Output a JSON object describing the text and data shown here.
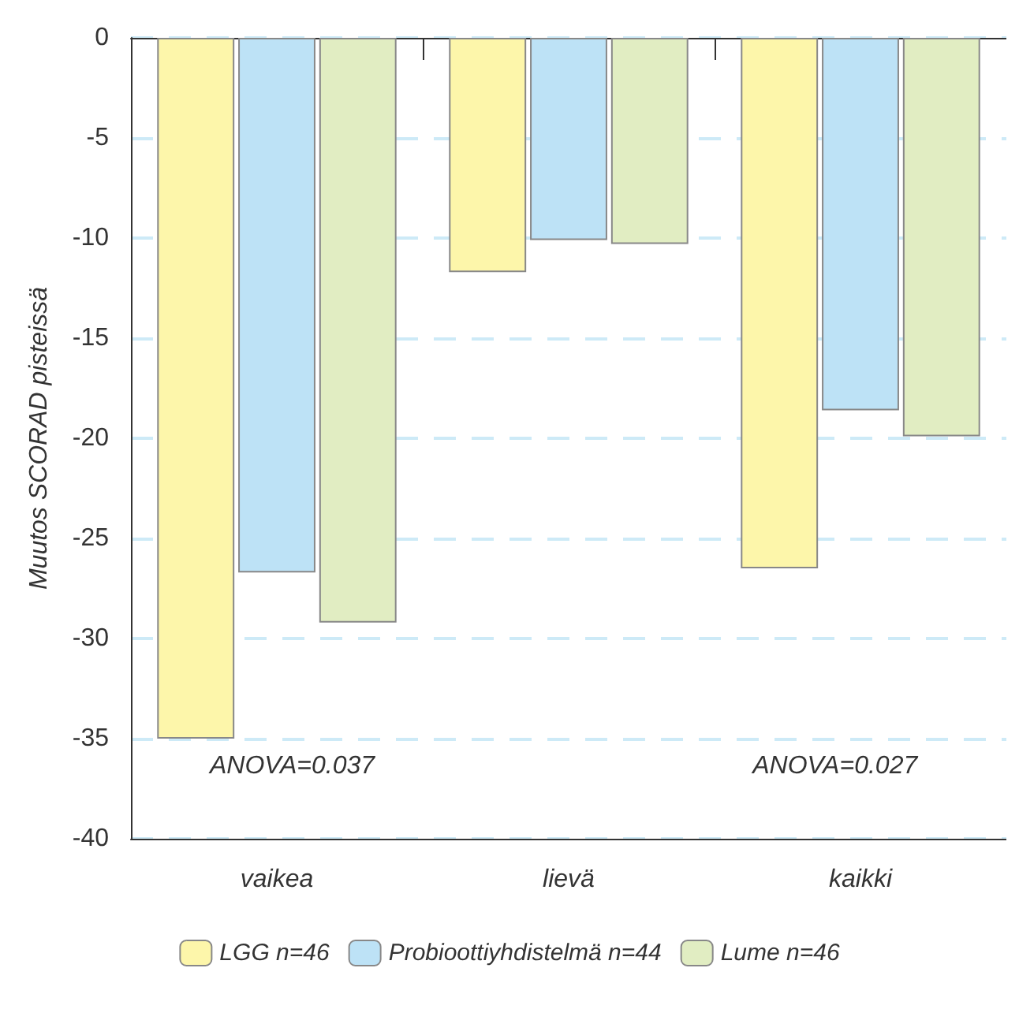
{
  "chart_data": {
    "type": "bar",
    "ylabel": "Muutos SCORAD pisteissä",
    "categories": [
      "vaikea",
      "lievä",
      "kaikki"
    ],
    "series": [
      {
        "name": "LGG n=46",
        "color": "#fdf6aa",
        "values": [
          -35.0,
          -11.7,
          -26.5
        ]
      },
      {
        "name": "Probioottiyhdistelmä n=44",
        "color": "#bde2f6",
        "values": [
          -26.7,
          -10.1,
          -18.6
        ]
      },
      {
        "name": "Lume n=46",
        "color": "#e1edc2",
        "values": [
          -29.2,
          -10.3,
          -19.9
        ]
      }
    ],
    "ylim": [
      -40,
      0
    ],
    "yticks": [
      -40,
      -35,
      -30,
      -25,
      -20,
      -15,
      -10,
      -5,
      0
    ],
    "grid": "y",
    "legend": "bottom",
    "annotations": [
      "ANOVA=0.037",
      "ANOVA=0.027"
    ]
  }
}
